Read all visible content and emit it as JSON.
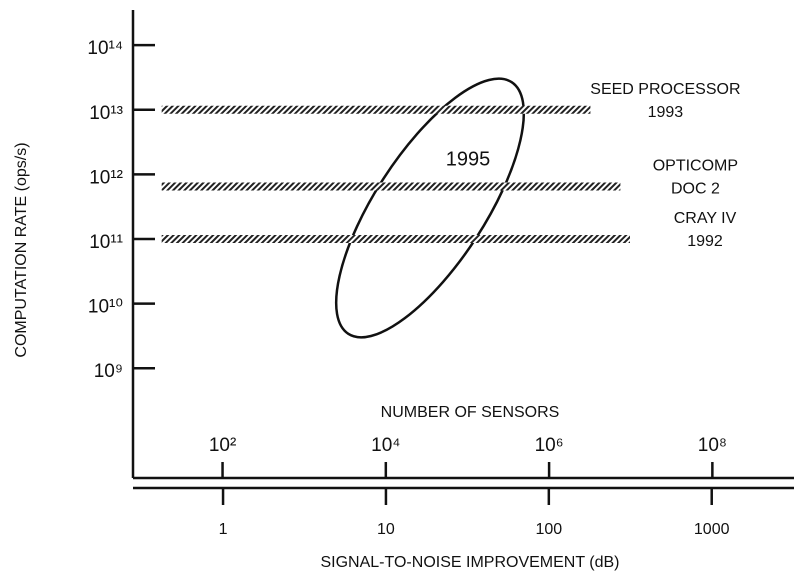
{
  "chart_data": {
    "type": "line",
    "ylabel": "COMPUTATION RATE (ops/s)",
    "xlabel": "SIGNAL-TO-NOISE IMPROVEMENT (dB)",
    "x2label": "NUMBER OF SENSORS",
    "annotation": "1995",
    "xscale": "log",
    "yscale": "log",
    "x2scale": "log",
    "xlim": [
      0.28,
      3200
    ],
    "xticks": [
      1,
      10,
      100,
      1000
    ],
    "x2lim": [
      8,
      1000000000
    ],
    "x2ticks": [
      {
        "value": 100,
        "label": "10²"
      },
      {
        "value": 10000,
        "label": "10⁴"
      },
      {
        "value": 1000000,
        "label": "10⁶"
      },
      {
        "value": 100000000,
        "label": "10⁸"
      }
    ],
    "ylim": [
      20000000,
      350000000000000
    ],
    "yticks": [
      {
        "value": 1000000000,
        "label": "10⁹"
      },
      {
        "value": 10000000000,
        "label": "10¹⁰"
      },
      {
        "value": 100000000000,
        "label": "10¹¹"
      },
      {
        "value": 1000000000000,
        "label": "10¹²"
      },
      {
        "value": 10000000000000,
        "label": "10¹³"
      },
      {
        "value": 100000000000000,
        "label": "10¹⁴"
      }
    ],
    "series": [
      {
        "name": "SEED PROCESSOR",
        "note": "1993",
        "color": "#222222",
        "x": [
          0.42,
          180
        ],
        "values": [
          10000000000000,
          10000000000000
        ]
      },
      {
        "name": "OPTICOMP",
        "note": "DOC 2",
        "color": "#222222",
        "x": [
          0.42,
          275
        ],
        "values": [
          650000000000,
          650000000000
        ]
      },
      {
        "name": "CRAY IV",
        "note": "1992",
        "color": "#222222",
        "x": [
          0.42,
          315
        ],
        "values": [
          100000000000,
          100000000000
        ]
      }
    ]
  }
}
